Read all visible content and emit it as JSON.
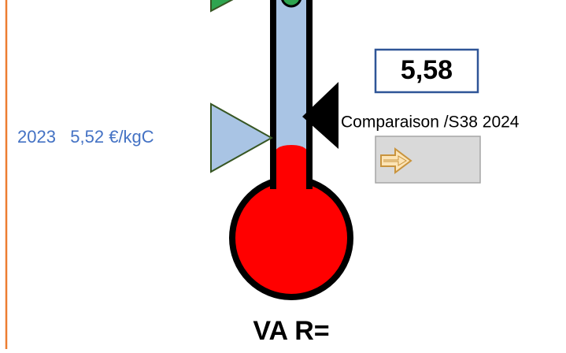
{
  "left_label": "2023   5,52 €/kgC",
  "value_box": "5,58",
  "comparison_label": "Comparaison /S38 2024",
  "footer": "VA R="
}
